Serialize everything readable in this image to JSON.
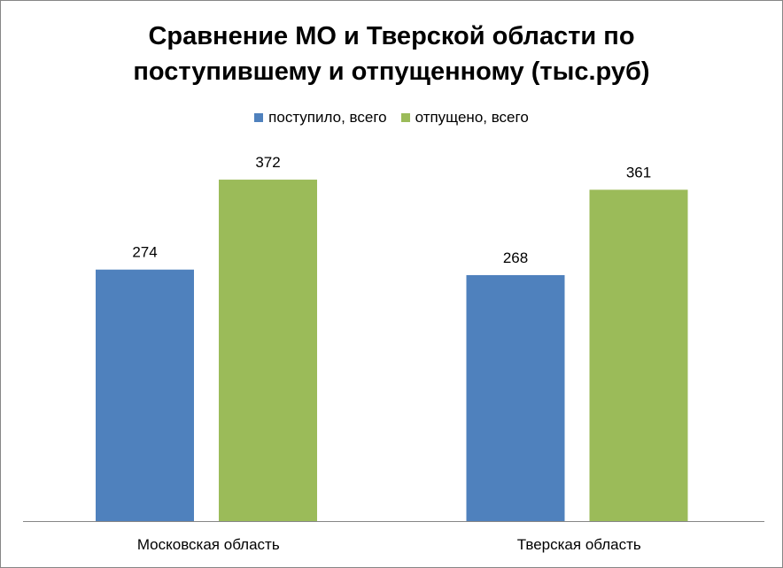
{
  "chart_data": {
    "type": "bar",
    "title_lines": [
      "Сравнение МО и Тверской области  по",
      "поступившему и отпущенному (тыс.руб)"
    ],
    "categories": [
      "Московская область",
      "Тверская область"
    ],
    "series": [
      {
        "name": "поступило, всего",
        "values": [
          274,
          268
        ],
        "color": "#4F81BD"
      },
      {
        "name": "отпущено, всего",
        "values": [
          372,
          361
        ],
        "color": "#9BBB59"
      }
    ],
    "ylim": [
      0,
      400
    ],
    "grid": false,
    "legend_position": "top"
  }
}
